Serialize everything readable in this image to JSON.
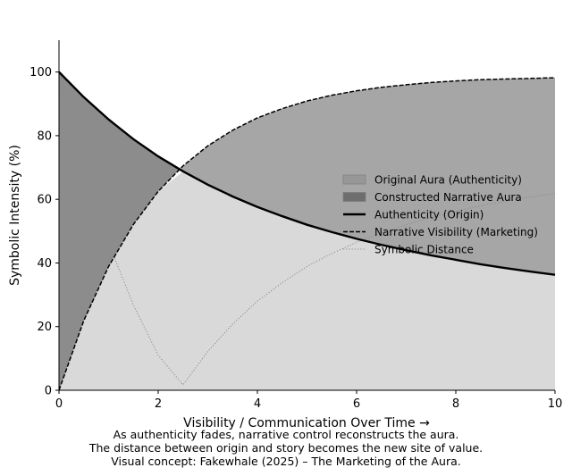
{
  "chart_data": {
    "type": "area",
    "title": "",
    "xlabel": "Visibility / Communication Over Time →",
    "ylabel": "Symbolic Intensity (%)",
    "xlim": [
      0,
      10
    ],
    "ylim": [
      0,
      110
    ],
    "xticks": [
      0,
      2,
      4,
      6,
      8,
      10
    ],
    "xtick_labels": [
      "0",
      "2",
      "4",
      "6",
      "8",
      "10"
    ],
    "yticks": [
      0,
      20,
      40,
      60,
      80,
      100
    ],
    "ytick_labels": [
      "0",
      "20",
      "40",
      "60",
      "80",
      "100"
    ],
    "grid": false,
    "legend_placement": "center-right",
    "x": [
      0,
      0.5,
      1,
      1.5,
      2,
      2.5,
      3,
      3.5,
      4,
      4.5,
      5,
      5.5,
      6,
      6.5,
      7,
      7.5,
      8,
      8.5,
      9,
      9.5,
      10
    ],
    "series": [
      {
        "name": "Authenticity (Origin)",
        "style": "solid",
        "color": "#000000",
        "values": [
          100,
          92.1,
          85.1,
          78.9,
          73.5,
          68.8,
          64.6,
          60.9,
          57.6,
          54.7,
          52.0,
          49.7,
          47.6,
          45.7,
          44.0,
          42.4,
          41.0,
          39.6,
          38.4,
          37.3,
          36.3
        ]
      },
      {
        "name": "Narrative Visibility (Marketing)",
        "style": "dashed",
        "color": "#000000",
        "values": [
          0,
          21.9,
          38.9,
          52.1,
          62.5,
          70.5,
          76.8,
          81.7,
          85.6,
          88.5,
          90.9,
          92.7,
          94.1,
          95.2,
          96.0,
          96.7,
          97.2,
          97.6,
          97.8,
          98.0,
          98.2
        ]
      },
      {
        "name": "Symbolic Distance",
        "style": "dotted",
        "color": "#888888",
        "values": [
          100,
          70.2,
          46.2,
          26.8,
          11.0,
          1.7,
          12.2,
          20.8,
          28.0,
          33.8,
          38.9,
          43.0,
          46.5,
          49.5,
          52.0,
          54.3,
          56.2,
          58.0,
          59.4,
          60.7,
          61.9
        ]
      }
    ],
    "fills": [
      {
        "name": "Original Aura (Authenticity)",
        "color": "#979797",
        "between": [
          "Authenticity (Origin)",
          "Narrative Visibility (Marketing)"
        ],
        "where": "authenticity above narrative"
      },
      {
        "name": "Constructed Narrative Aura",
        "color": "#6e6e6e",
        "between": [
          "Narrative Visibility (Marketing)",
          "Authenticity (Origin)"
        ],
        "where": "narrative above authenticity"
      }
    ],
    "legend": [
      {
        "label": "Original Aura (Authenticity)",
        "kind": "patch",
        "color": "#979797"
      },
      {
        "label": "Constructed Narrative Aura",
        "kind": "patch",
        "color": "#6e6e6e"
      },
      {
        "label": "Authenticity (Origin)",
        "kind": "line",
        "style": "solid"
      },
      {
        "label": "Narrative Visibility (Marketing)",
        "kind": "line",
        "style": "dashed"
      },
      {
        "label": "Symbolic Distance",
        "kind": "line",
        "style": "dotted"
      }
    ]
  },
  "caption": [
    "As authenticity fades, narrative control reconstructs the aura.",
    "The distance between origin and story becomes the new site of value.",
    "Visual concept: Fakewhale (2025) – The Marketing of the Aura."
  ]
}
